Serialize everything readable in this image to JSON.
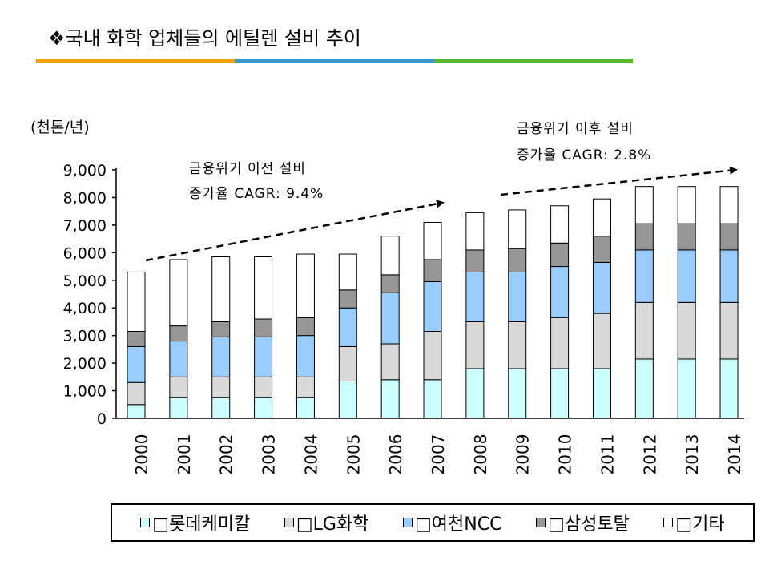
{
  "slide": {
    "title": "❖국내 화학 업체들의 에틸렌 설비 추이",
    "bar_colors": [
      "#f5a10a",
      "#3a95c9",
      "#5ab82c"
    ]
  },
  "chart_data": {
    "type": "bar",
    "stacked": true,
    "unit_label": "(천톤/년)",
    "categories": [
      "2000",
      "2001",
      "2002",
      "2003",
      "2004",
      "2005",
      "2006",
      "2007",
      "2008",
      "2009",
      "2010",
      "2011",
      "2012",
      "2013",
      "2014"
    ],
    "ylim": [
      0,
      9000
    ],
    "yticks": [
      0,
      1000,
      2000,
      3000,
      4000,
      5000,
      6000,
      7000,
      8000,
      9000
    ],
    "ytick_labels": [
      "0",
      "1,000",
      "2,000",
      "3,000",
      "4,000",
      "5,000",
      "6,000",
      "7,000",
      "8,000",
      "9,000"
    ],
    "series": [
      {
        "name": "롯데케미칼",
        "color": "#ccffff",
        "values": [
          500,
          750,
          750,
          750,
          750,
          1350,
          1400,
          1400,
          1800,
          1800,
          1800,
          1800,
          2150,
          2150,
          2150
        ]
      },
      {
        "name": "LG화학",
        "color": "#d9d9d9",
        "values": [
          800,
          750,
          750,
          750,
          750,
          1250,
          1300,
          1750,
          1700,
          1700,
          1850,
          2000,
          2050,
          2050,
          2050
        ]
      },
      {
        "name": "여천NCC",
        "color": "#99ccff",
        "values": [
          1300,
          1300,
          1450,
          1450,
          1500,
          1400,
          1850,
          1800,
          1800,
          1800,
          1850,
          1850,
          1900,
          1900,
          1900
        ]
      },
      {
        "name": "삼성토탈",
        "color": "#969696",
        "values": [
          550,
          550,
          550,
          650,
          650,
          650,
          650,
          800,
          800,
          850,
          850,
          950,
          950,
          950,
          950
        ]
      },
      {
        "name": "기타",
        "color": "#ffffff",
        "values": [
          2150,
          2400,
          2350,
          2250,
          2300,
          1300,
          1400,
          1350,
          1350,
          1400,
          1350,
          1350,
          1350,
          1350,
          1350
        ]
      }
    ],
    "annotations": [
      {
        "line1": "금융위기 이전 설비",
        "line2": "증가율 CAGR: 9.4%"
      },
      {
        "line1": "금융위기 이후 설비",
        "line2": "증가율 CAGR: 2.8%"
      }
    ],
    "legend": [
      "□롯데케미칼",
      "□LG화학",
      "□여천NCC",
      "□삼성토탈",
      "□기타"
    ]
  }
}
